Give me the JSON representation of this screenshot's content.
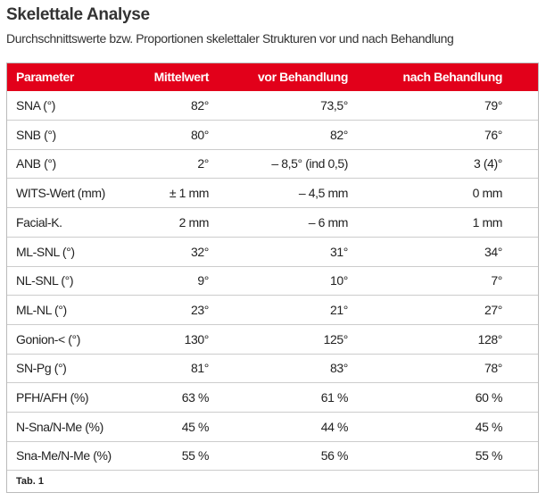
{
  "title": "Skelettale Analyse",
  "subtitle": "Durchschnittswerte bzw. Proportionen skelettaler Strukturen vor und nach Behandlung",
  "table": {
    "headers": [
      "Parameter",
      "Mittelwert",
      "vor Behandlung",
      "nach Behandlung"
    ],
    "rows": [
      [
        "SNA (°)",
        "82°",
        "73,5°",
        "79°"
      ],
      [
        "SNB (°)",
        "80°",
        "82°",
        "76°"
      ],
      [
        "ANB (°)",
        "2°",
        "– 8,5° (ind 0,5)",
        "3 (4)°"
      ],
      [
        "WITS-Wert (mm)",
        "± 1 mm",
        "– 4,5 mm",
        "0 mm"
      ],
      [
        "Facial-K.",
        "2 mm",
        "– 6 mm",
        "1 mm"
      ],
      [
        "ML-SNL (°)",
        "32°",
        "31°",
        "34°"
      ],
      [
        "NL-SNL (°)",
        "9°",
        "10°",
        "7°"
      ],
      [
        "ML-NL (°)",
        "23°",
        "21°",
        "27°"
      ],
      [
        "Gonion-< (°)",
        "130°",
        "125°",
        "128°"
      ],
      [
        "SN-Pg (°)",
        "81°",
        "83°",
        "78°"
      ],
      [
        "PFH/AFH (%)",
        "63 %",
        "61 %",
        "60 %"
      ],
      [
        "N-Sna/N-Me (%)",
        "45 %",
        "44 %",
        "45 %"
      ],
      [
        "Sna-Me/N-Me (%)",
        "55 %",
        "56 %",
        "55 %"
      ]
    ],
    "caption": "Tab. 1"
  }
}
